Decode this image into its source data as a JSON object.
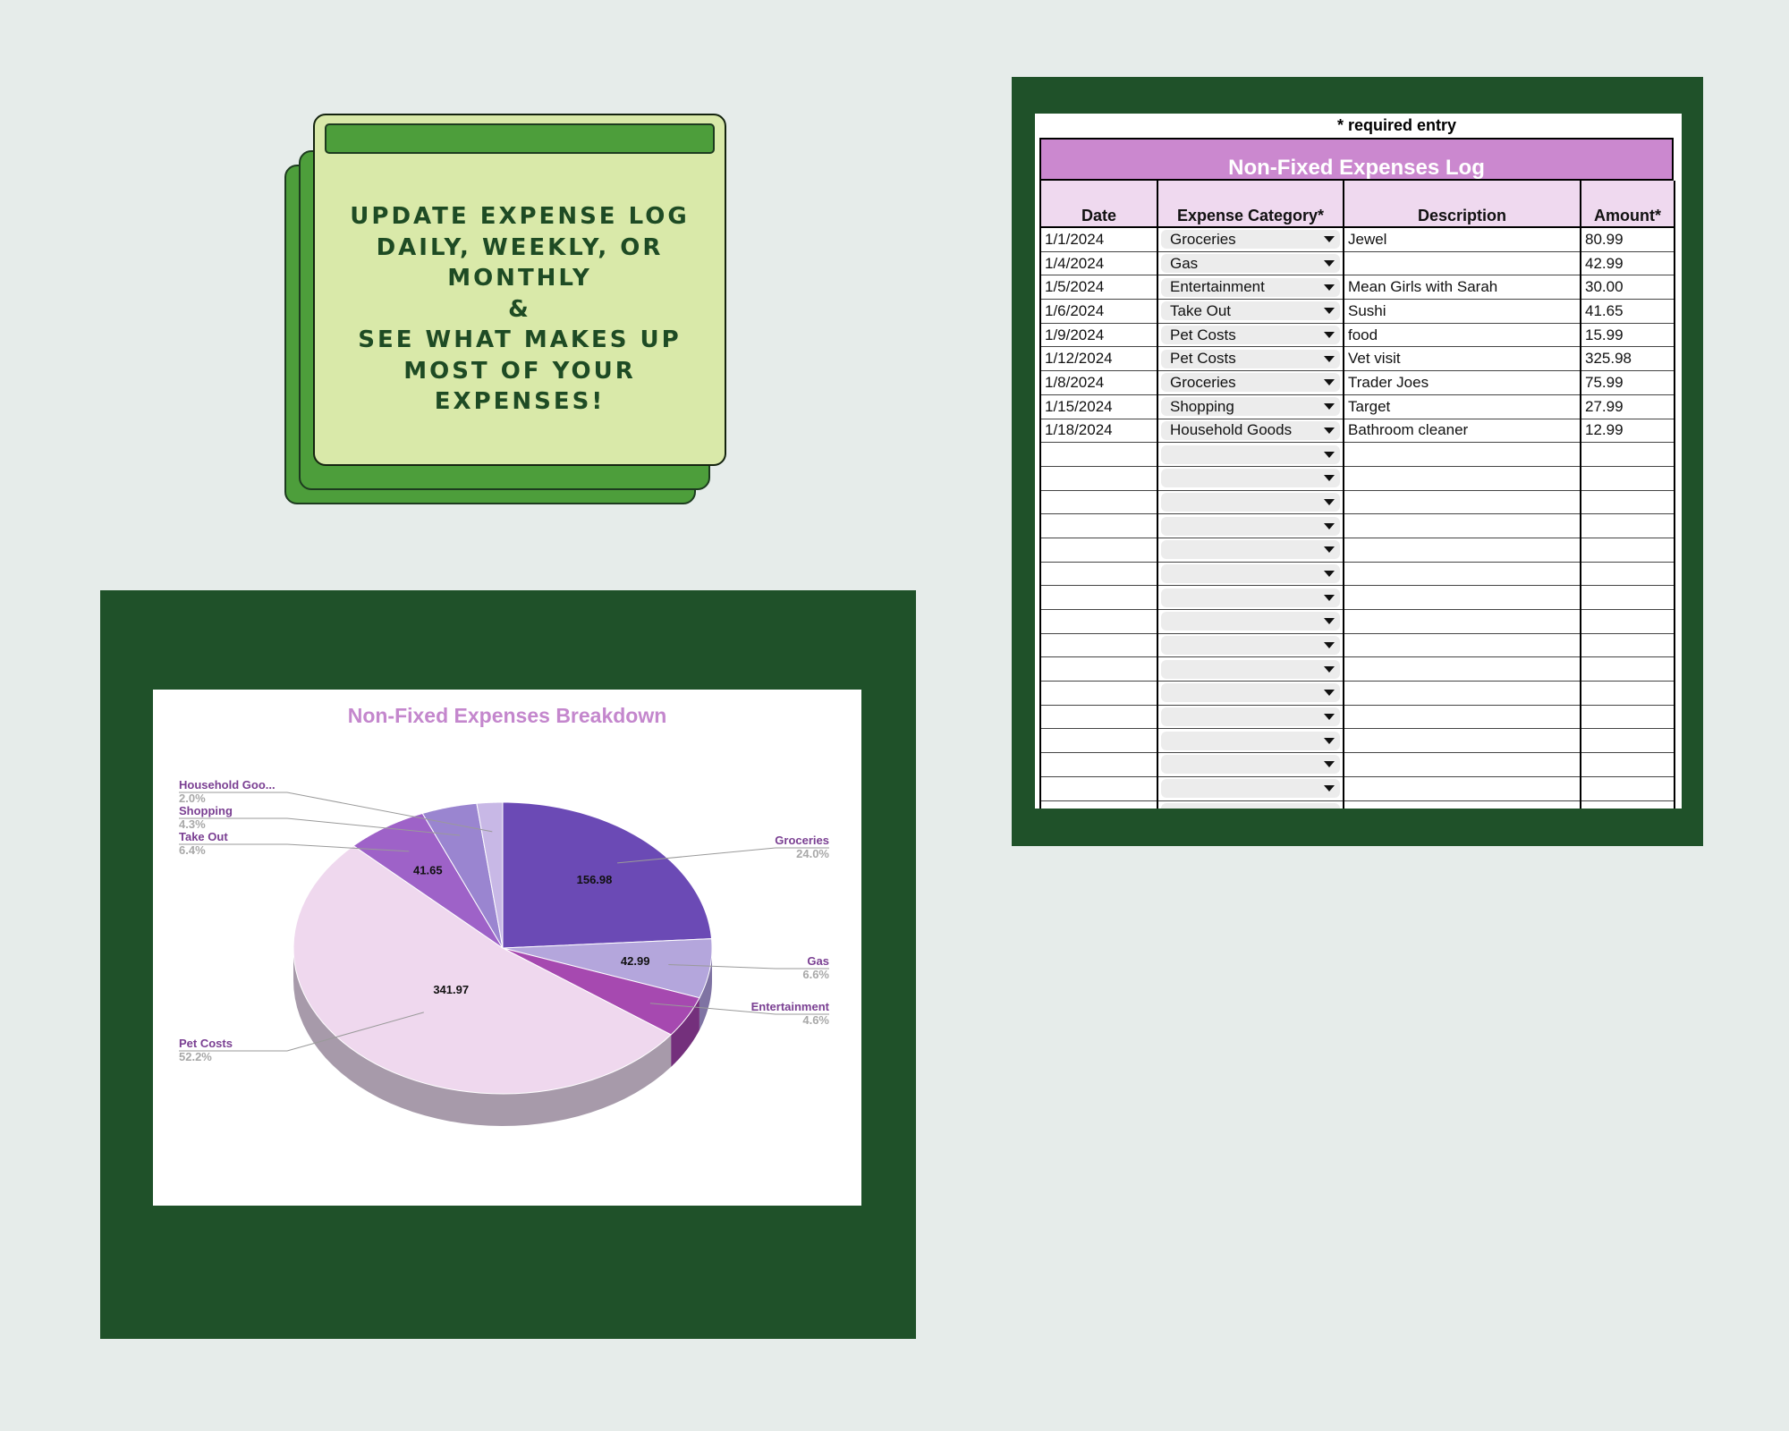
{
  "note_card": {
    "lines": [
      "UPDATE EXPENSE LOG",
      "DAILY, WEEKLY, OR",
      "MONTHLY",
      "&",
      "SEE WHAT MAKES UP",
      "MOST OF YOUR",
      "EXPENSES!"
    ]
  },
  "chart_data": {
    "type": "pie",
    "title": "Non-Fixed Expenses Breakdown",
    "three_d": true,
    "slices": [
      {
        "name": "Groceries",
        "value": 156.98,
        "percent": "24.0%",
        "color": "#6b4ab5",
        "side": "#4b3483",
        "value_label": "156.98"
      },
      {
        "name": "Gas",
        "value": 42.99,
        "percent": "6.6%",
        "color": "#b4a6dc",
        "side": "#7f73a3",
        "value_label": "42.99"
      },
      {
        "name": "Entertainment",
        "value": 30.0,
        "percent": "4.6%",
        "color": "#a649b0",
        "side": "#74307c",
        "value_label": ""
      },
      {
        "name": "Pet Costs",
        "value": 341.97,
        "percent": "52.2%",
        "color": "#efd8ee",
        "side": "#a79aaa",
        "value_label": "341.97"
      },
      {
        "name": "Take Out",
        "value": 41.65,
        "percent": "6.4%",
        "color": "#9e62c8",
        "side": "#6e448c",
        "value_label": "41.65"
      },
      {
        "name": "Shopping",
        "value": 27.99,
        "percent": "4.3%",
        "color": "#9a85d0",
        "side": "#6b5d92",
        "value_label": ""
      },
      {
        "name": "Household Goo...",
        "value": 12.99,
        "percent": "2.0%",
        "color": "#c8b8e6",
        "side": "#8c81a2",
        "value_label": ""
      }
    ]
  },
  "log": {
    "required_note": "* required entry",
    "title": "Non-Fixed Expenses Log",
    "headers": [
      "Date",
      "Expense Category*",
      "Description",
      "Amount*"
    ],
    "rows": [
      {
        "date": "1/1/2024",
        "category": "Groceries",
        "description": "Jewel",
        "amount": "80.99"
      },
      {
        "date": "1/4/2024",
        "category": "Gas",
        "description": "",
        "amount": "42.99"
      },
      {
        "date": "1/5/2024",
        "category": "Entertainment",
        "description": "Mean Girls with Sarah",
        "amount": "30.00"
      },
      {
        "date": "1/6/2024",
        "category": "Take Out",
        "description": "Sushi",
        "amount": "41.65"
      },
      {
        "date": "1/9/2024",
        "category": "Pet Costs",
        "description": "food",
        "amount": "15.99"
      },
      {
        "date": "1/12/2024",
        "category": "Pet Costs",
        "description": "Vet visit",
        "amount": "325.98"
      },
      {
        "date": "1/8/2024",
        "category": "Groceries",
        "description": "Trader Joes",
        "amount": "75.99"
      },
      {
        "date": "1/15/2024",
        "category": "Shopping",
        "description": "Target",
        "amount": "27.99"
      },
      {
        "date": "1/18/2024",
        "category": "Household Goods",
        "description": "Bathroom cleaner",
        "amount": "12.99"
      },
      {
        "date": "",
        "category": "",
        "description": "",
        "amount": ""
      },
      {
        "date": "",
        "category": "",
        "description": "",
        "amount": ""
      },
      {
        "date": "",
        "category": "",
        "description": "",
        "amount": ""
      },
      {
        "date": "",
        "category": "",
        "description": "",
        "amount": ""
      },
      {
        "date": "",
        "category": "",
        "description": "",
        "amount": ""
      },
      {
        "date": "",
        "category": "",
        "description": "",
        "amount": ""
      },
      {
        "date": "",
        "category": "",
        "description": "",
        "amount": ""
      },
      {
        "date": "",
        "category": "",
        "description": "",
        "amount": ""
      },
      {
        "date": "",
        "category": "",
        "description": "",
        "amount": ""
      },
      {
        "date": "",
        "category": "",
        "description": "",
        "amount": ""
      },
      {
        "date": "",
        "category": "",
        "description": "",
        "amount": ""
      },
      {
        "date": "",
        "category": "",
        "description": "",
        "amount": ""
      },
      {
        "date": "",
        "category": "",
        "description": "",
        "amount": ""
      },
      {
        "date": "",
        "category": "",
        "description": "",
        "amount": ""
      },
      {
        "date": "",
        "category": "",
        "description": "",
        "amount": ""
      },
      {
        "date": "",
        "category": "",
        "description": "",
        "amount": ""
      }
    ]
  },
  "colors": {
    "background": "#e6ecea",
    "panel_green": "#1f5129",
    "accent_purple": "#cb88cf"
  }
}
